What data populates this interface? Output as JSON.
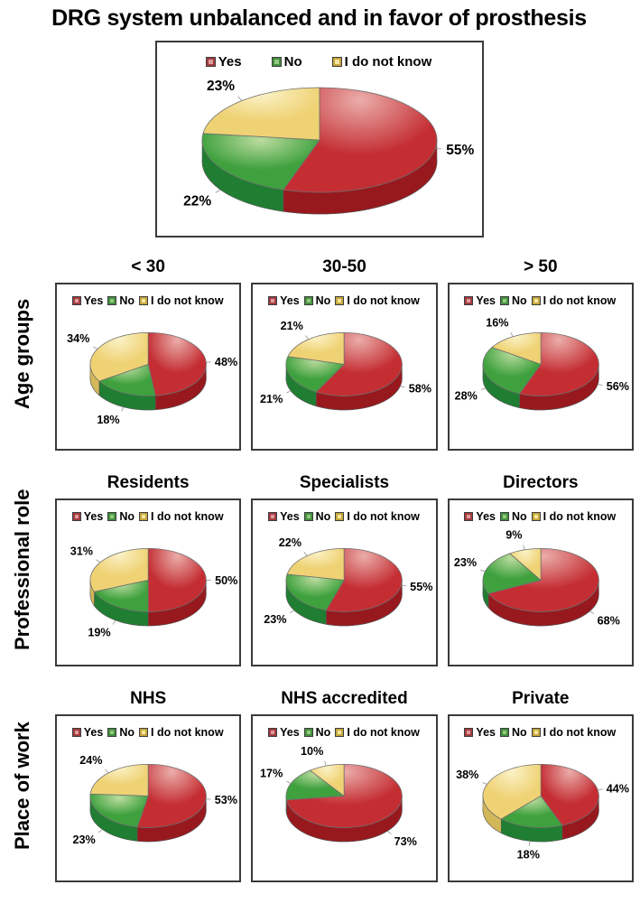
{
  "title": "DRG system unbalanced and in favor of prosthesis",
  "legend": {
    "position": "top",
    "items": [
      "Yes",
      "No",
      "I do not know"
    ]
  },
  "colors": {
    "series": [
      {
        "name": "Yes",
        "light": "#EBADAA",
        "main": "#C42E33",
        "dark": "#97191E",
        "swatch_fill": "#DE9B9B",
        "swatch_border": "#A33C40"
      },
      {
        "name": "No",
        "light": "#BCDCA0",
        "main": "#3FA13E",
        "dark": "#1F7E31",
        "swatch_fill": "#93C97E",
        "swatch_border": "#44903F"
      },
      {
        "name": "I do not know",
        "light": "#FBF2C8",
        "main": "#EFD274",
        "dark": "#D2B758",
        "swatch_fill": "#F6E6A0",
        "swatch_border": "#C7A83E"
      }
    ]
  },
  "chart_data": {
    "type": "pie",
    "style": "3d-pie",
    "categories": [
      "Yes",
      "No",
      "I do not know"
    ],
    "unit": "%",
    "overall": {
      "title": "",
      "values": [
        55,
        22,
        23
      ]
    },
    "groups": [
      {
        "label": "Age groups",
        "charts": [
          {
            "title": "< 30",
            "values": [
              48,
              18,
              34
            ]
          },
          {
            "title": "30-50",
            "values": [
              58,
              21,
              21
            ]
          },
          {
            "title": "> 50",
            "values": [
              56,
              28,
              16
            ]
          }
        ]
      },
      {
        "label": "Professional role",
        "charts": [
          {
            "title": "Residents",
            "values": [
              50,
              19,
              31
            ]
          },
          {
            "title": "Specialists",
            "values": [
              55,
              23,
              22
            ]
          },
          {
            "title": "Directors",
            "values": [
              68,
              23,
              9
            ]
          }
        ]
      },
      {
        "label": "Place of work",
        "charts": [
          {
            "title": "NHS",
            "values": [
              53,
              23,
              24
            ]
          },
          {
            "title": "NHS accredited",
            "values": [
              73,
              17,
              10
            ]
          },
          {
            "title": "Private",
            "values": [
              44,
              18,
              38
            ]
          }
        ]
      }
    ]
  }
}
